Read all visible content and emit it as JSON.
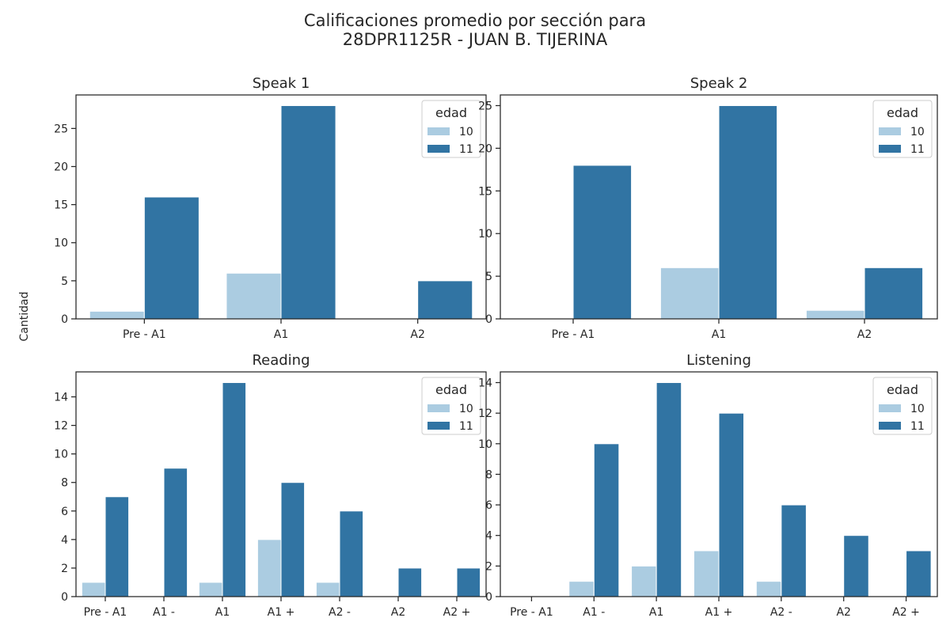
{
  "suptitle": [
    "Calificaciones promedio por sección para",
    "28DPR1125R - JUAN B. TIJERINA"
  ],
  "shared_ylabel": "Cantidad",
  "colors": {
    "10": "#abcce1",
    "11": "#3174a3"
  },
  "chart_data": [
    {
      "type": "bar",
      "title": "Speak 1",
      "categories": [
        "Pre - A1",
        "A1",
        "A2"
      ],
      "series": [
        {
          "name": "10",
          "values": [
            1,
            6,
            0
          ]
        },
        {
          "name": "11",
          "values": [
            16,
            28,
            5
          ]
        }
      ],
      "ylim": [
        0,
        29.4
      ],
      "yticks": [
        0,
        5,
        10,
        15,
        20,
        25
      ],
      "legend": {
        "title": "edad",
        "placement": "top-right"
      }
    },
    {
      "type": "bar",
      "title": "Speak 2",
      "categories": [
        "Pre - A1",
        "A1",
        "A2"
      ],
      "series": [
        {
          "name": "10",
          "values": [
            0,
            6,
            1
          ]
        },
        {
          "name": "11",
          "values": [
            18,
            25,
            6
          ]
        }
      ],
      "ylim": [
        0,
        26.25
      ],
      "yticks": [
        0,
        5,
        10,
        15,
        20,
        25
      ],
      "legend": {
        "title": "edad",
        "placement": "top-right"
      }
    },
    {
      "type": "bar",
      "title": "Reading",
      "categories": [
        "Pre - A1",
        "A1 -",
        "A1",
        "A1 +",
        "A2 -",
        "A2",
        "A2 +"
      ],
      "series": [
        {
          "name": "10",
          "values": [
            1,
            0,
            1,
            4,
            1,
            0,
            0
          ]
        },
        {
          "name": "11",
          "values": [
            7,
            9,
            15,
            8,
            6,
            2,
            2
          ]
        }
      ],
      "ylim": [
        0,
        15.75
      ],
      "yticks": [
        0,
        2,
        4,
        6,
        8,
        10,
        12,
        14
      ],
      "legend": {
        "title": "edad",
        "placement": "top-right"
      }
    },
    {
      "type": "bar",
      "title": "Listening",
      "categories": [
        "Pre - A1",
        "A1 -",
        "A1",
        "A1 +",
        "A2 -",
        "A2",
        "A2 +"
      ],
      "series": [
        {
          "name": "10",
          "values": [
            0,
            1,
            2,
            3,
            1,
            0,
            0
          ]
        },
        {
          "name": "11",
          "values": [
            0,
            10,
            14,
            12,
            6,
            4,
            3
          ]
        }
      ],
      "ylim": [
        0,
        14.7
      ],
      "yticks": [
        0,
        2,
        4,
        6,
        8,
        10,
        12,
        14
      ],
      "legend": {
        "title": "edad",
        "placement": "top-right"
      }
    }
  ]
}
